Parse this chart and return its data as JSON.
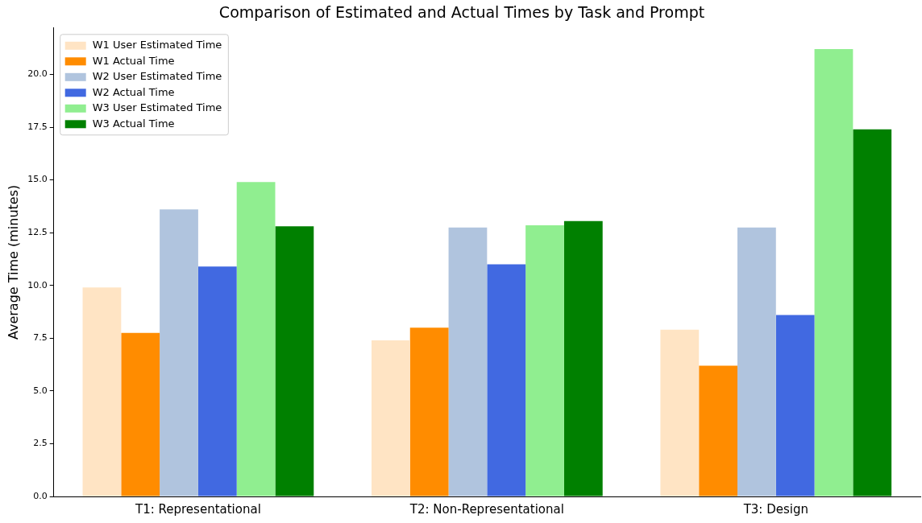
{
  "chart_data": {
    "type": "bar",
    "title": "Comparison of Estimated and Actual Times by Task and Prompt",
    "ylabel": "Average Time (minutes)",
    "categories": [
      "T1: Representational",
      "T2: Non-Representational",
      "T3: Design"
    ],
    "series": [
      {
        "name": "W1 User Estimated Time",
        "color": "#ffe4c4",
        "values": [
          9.9,
          7.4,
          7.9
        ]
      },
      {
        "name": "W1 Actual Time",
        "color": "#ff8c00",
        "values": [
          7.75,
          8.0,
          6.2
        ]
      },
      {
        "name": "W2 User Estimated Time",
        "color": "#b0c4de",
        "values": [
          13.6,
          12.75,
          12.75
        ]
      },
      {
        "name": "W2 Actual Time",
        "color": "#4169e1",
        "values": [
          10.9,
          11.0,
          8.6
        ]
      },
      {
        "name": "W3 User Estimated Time",
        "color": "#90ee90",
        "values": [
          14.9,
          12.85,
          21.2
        ]
      },
      {
        "name": "W3 Actual Time",
        "color": "#008000",
        "values": [
          12.8,
          13.05,
          17.4
        ]
      }
    ],
    "ylim": [
      0,
      22.2
    ],
    "yticks": [
      {
        "value": 0,
        "label": "0.0"
      },
      {
        "value": 2.5,
        "label": "2.5"
      },
      {
        "value": 5,
        "label": "5.0"
      },
      {
        "value": 7.5,
        "label": "7.5"
      },
      {
        "value": 10,
        "label": "10.0"
      },
      {
        "value": 12.5,
        "label": "12.5"
      },
      {
        "value": 15,
        "label": "15.0"
      },
      {
        "value": 17.5,
        "label": "17.5"
      },
      {
        "value": 20,
        "label": "20.0"
      }
    ],
    "grid": false,
    "legend": "top left"
  }
}
